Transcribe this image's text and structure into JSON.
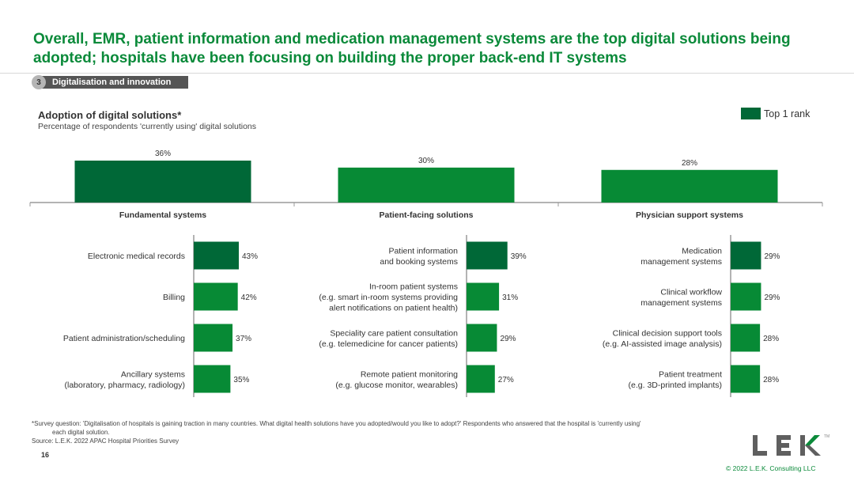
{
  "headline": "Overall, EMR, patient information and medication management systems are the top digital solutions being adopted; hospitals have been focusing on building the proper back-end IT systems",
  "section": {
    "number": "3",
    "label": "Digitalisation and innovation"
  },
  "legend": {
    "label": "Top 1 rank",
    "color": "#006837"
  },
  "colors": {
    "top": "#006837",
    "other": "#078a35"
  },
  "chart_data": [
    {
      "type": "bar",
      "title": "Adoption of digital solutions*",
      "subtitle": "Percentage of respondents 'currently using' digital solutions",
      "categories": [
        "Fundamental systems",
        "Patient-facing solutions",
        "Physician support systems"
      ],
      "values": [
        36,
        30,
        28
      ],
      "value_labels": [
        "36%",
        "30%",
        "28%"
      ],
      "top_rank": [
        true,
        false,
        false
      ],
      "ylim": [
        0,
        40
      ]
    },
    {
      "type": "bar",
      "orientation": "horizontal",
      "group": "Fundamental systems",
      "categories": [
        [
          "Electronic medical records"
        ],
        [
          "Billing"
        ],
        [
          "Patient administration/scheduling"
        ],
        [
          "Ancillary systems",
          "(laboratory, pharmacy, radiology)"
        ]
      ],
      "values": [
        43,
        42,
        37,
        35
      ],
      "value_labels": [
        "43%",
        "42%",
        "37%",
        "35%"
      ],
      "top_rank": [
        true,
        false,
        false,
        false
      ],
      "xlim": [
        0,
        60
      ]
    },
    {
      "type": "bar",
      "orientation": "horizontal",
      "group": "Patient-facing solutions",
      "categories": [
        [
          "Patient information",
          "and booking systems"
        ],
        [
          "In-room patient systems",
          "(e.g. smart in-room systems providing",
          "alert notifications on patient health)"
        ],
        [
          "Speciality care patient consultation",
          "(e.g. telemedicine for cancer patients)"
        ],
        [
          "Remote patient monitoring",
          "(e.g. glucose monitor, wearables)"
        ]
      ],
      "values": [
        39,
        31,
        29,
        27
      ],
      "value_labels": [
        "39%",
        "31%",
        "29%",
        "27%"
      ],
      "top_rank": [
        true,
        false,
        false,
        false
      ],
      "xlim": [
        0,
        60
      ]
    },
    {
      "type": "bar",
      "orientation": "horizontal",
      "group": "Physician support systems",
      "categories": [
        [
          "Medication",
          "management systems"
        ],
        [
          "Clinical workflow",
          "management systems"
        ],
        [
          "Clinical decision support tools",
          "(e.g. AI-assisted image analysis)"
        ],
        [
          "Patient treatment",
          "(e.g. 3D-printed implants)"
        ]
      ],
      "values": [
        29,
        29,
        28,
        28
      ],
      "value_labels": [
        "29%",
        "29%",
        "28%",
        "28%"
      ],
      "top_rank": [
        true,
        false,
        false,
        false
      ],
      "xlim": [
        0,
        60
      ]
    }
  ],
  "footnote": {
    "line1": "*Survey question: 'Digitalisation of hospitals is gaining traction in many countries. What digital health solutions have you adopted/would you like to adopt?' Respondents who answered that the hospital is 'currently using'",
    "line2": "each digital solution.",
    "source": "Source:  L.E.K. 2022 APAC Hospital Priorities Survey"
  },
  "page_number": "16",
  "logo": {
    "letters": [
      "L",
      "E",
      "K"
    ],
    "tm": "TM"
  },
  "copyright": "© 2022 L.E.K. Consulting LLC"
}
